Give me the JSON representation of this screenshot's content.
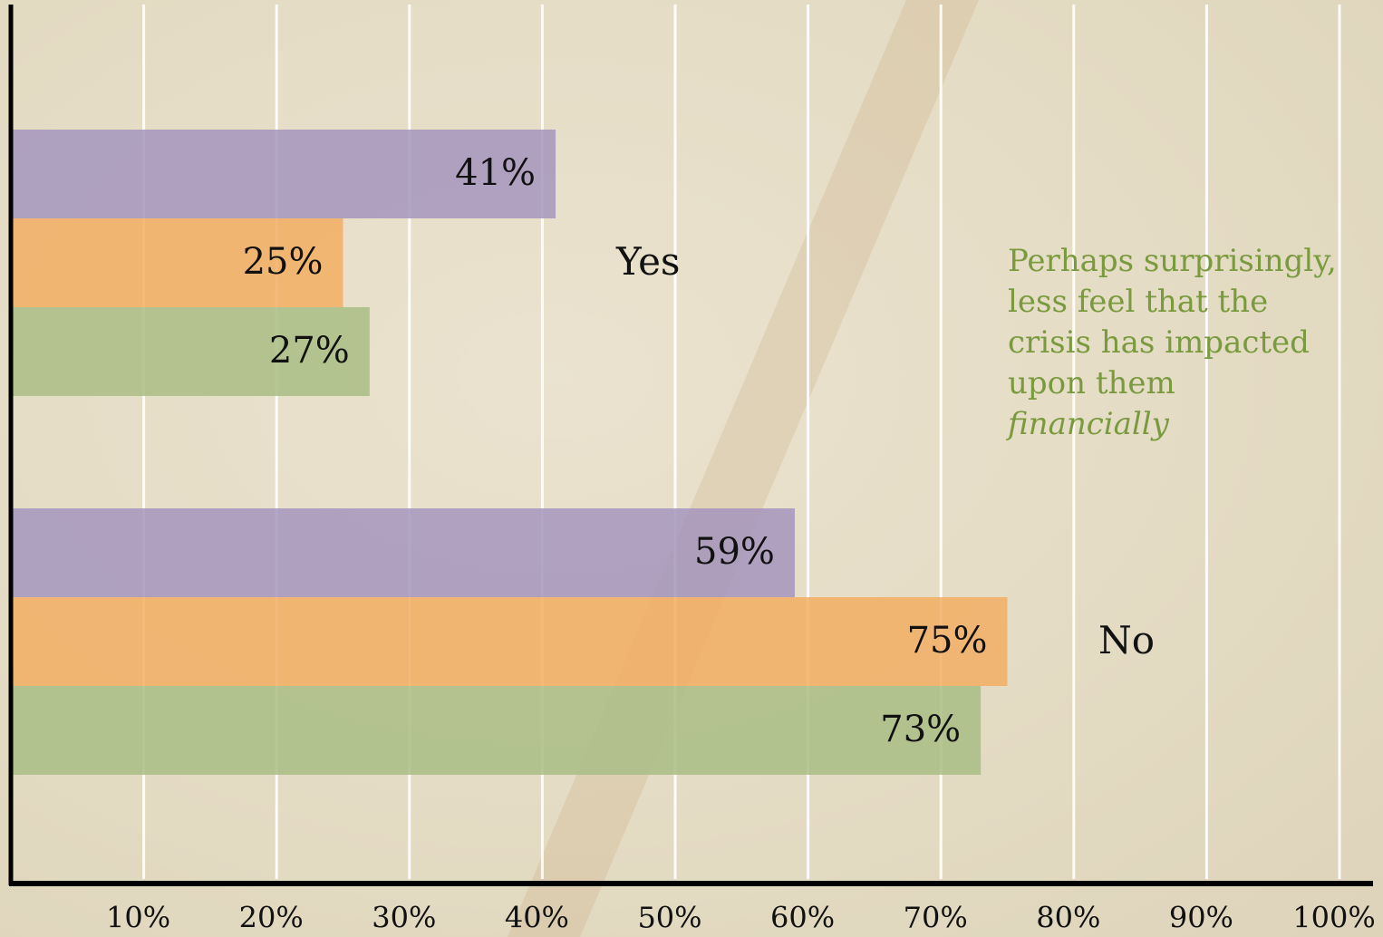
{
  "chart_data": {
    "type": "hbar",
    "categories": [
      "Yes",
      "No"
    ],
    "series": [
      {
        "color": "#a595bd",
        "values": [
          41,
          59
        ],
        "value_labels": [
          "41%",
          "59%"
        ]
      },
      {
        "color": "#f2ae63",
        "values": [
          25,
          75
        ],
        "value_labels": [
          "25%",
          "75%"
        ]
      },
      {
        "color": "#a9bd85",
        "values": [
          27,
          73
        ],
        "value_labels": [
          "27%",
          "73%"
        ]
      }
    ],
    "xlim": [
      0,
      100
    ],
    "xticks": [
      {
        "value": 10,
        "label": "10%"
      },
      {
        "value": 20,
        "label": "20%"
      },
      {
        "value": 30,
        "label": "30%"
      },
      {
        "value": 40,
        "label": "40%"
      },
      {
        "value": 50,
        "label": "50%"
      },
      {
        "value": 60,
        "label": "60%"
      },
      {
        "value": 70,
        "label": "70%"
      },
      {
        "value": 80,
        "label": "80%"
      },
      {
        "value": 90,
        "label": "90%"
      },
      {
        "value": 100,
        "label": "100%"
      }
    ],
    "grid": true,
    "annotation": {
      "text": "Perhaps surprisingly, less feel that the crisis has impacted upon them",
      "emphasis": "financially"
    }
  }
}
